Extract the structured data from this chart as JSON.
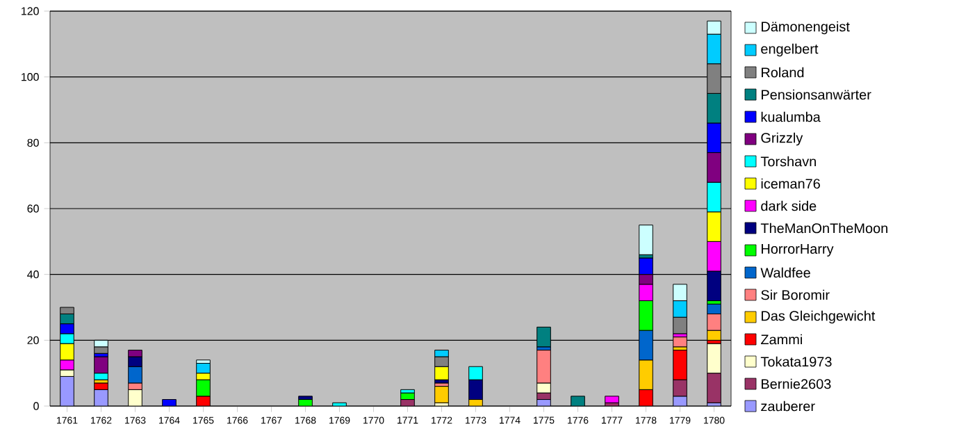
{
  "chart_data": {
    "type": "bar",
    "stacked": true,
    "legend": "right",
    "grid": "y",
    "categories": [
      "1761",
      "1762",
      "1763",
      "1764",
      "1765",
      "1766",
      "1767",
      "1768",
      "1769",
      "1770",
      "1771",
      "1772",
      "1773",
      "1774",
      "1775",
      "1776",
      "1777",
      "1778",
      "1779",
      "1780"
    ],
    "ylim": [
      0,
      120
    ],
    "yticks": [
      0,
      20,
      40,
      60,
      80,
      100,
      120
    ],
    "series": [
      {
        "name": "zauberer",
        "color": "#9999ff",
        "values": [
          9,
          5,
          0,
          0,
          0,
          0,
          0,
          0,
          0,
          0,
          0,
          0,
          0,
          0,
          2,
          0,
          0,
          0,
          3,
          1
        ]
      },
      {
        "name": "Bernie2603",
        "color": "#993366",
        "values": [
          0,
          0,
          0,
          0,
          0,
          0,
          0,
          0,
          0,
          0,
          2,
          0,
          0,
          0,
          2,
          0,
          1,
          0,
          5,
          9
        ]
      },
      {
        "name": "Tokata1973",
        "color": "#ffffcc",
        "values": [
          2,
          0,
          5,
          0,
          0,
          0,
          0,
          0,
          0,
          0,
          0,
          1,
          0,
          0,
          3,
          0,
          0,
          0,
          0,
          9
        ]
      },
      {
        "name": "Zammi",
        "color": "#ff0000",
        "values": [
          0,
          2,
          0,
          0,
          3,
          0,
          0,
          0,
          0,
          0,
          0,
          0,
          0,
          0,
          0,
          0,
          0,
          5,
          9,
          1
        ]
      },
      {
        "name": "Das Gleichgewicht",
        "color": "#ffcc00",
        "values": [
          0,
          1,
          0,
          0,
          0,
          0,
          0,
          0,
          0,
          0,
          0,
          5,
          2,
          0,
          0,
          0,
          0,
          9,
          1,
          3
        ]
      },
      {
        "name": "Sir Boromir",
        "color": "#ff8080",
        "values": [
          0,
          0,
          2,
          0,
          0,
          0,
          0,
          0,
          0,
          0,
          0,
          1,
          0,
          0,
          10,
          0,
          0,
          0,
          3,
          5
        ]
      },
      {
        "name": "Waldfee",
        "color": "#0066cc",
        "values": [
          0,
          0,
          5,
          0,
          0,
          0,
          0,
          0,
          0,
          0,
          0,
          0,
          0,
          0,
          1,
          0,
          0,
          9,
          0,
          3
        ]
      },
      {
        "name": "HorrorHarry",
        "color": "#00ff00",
        "values": [
          0,
          0,
          0,
          0,
          5,
          0,
          0,
          2,
          0,
          0,
          2,
          0,
          0,
          0,
          0,
          0,
          0,
          9,
          0,
          1
        ]
      },
      {
        "name": "TheManOnTheMoon",
        "color": "#000080",
        "values": [
          0,
          0,
          3,
          0,
          0,
          0,
          0,
          1,
          0,
          0,
          0,
          1,
          6,
          0,
          0,
          0,
          0,
          0,
          0,
          9
        ]
      },
      {
        "name": "dark side",
        "color": "#ff00ff",
        "values": [
          3,
          0,
          0,
          0,
          0,
          0,
          0,
          0,
          0,
          0,
          0,
          0,
          0,
          0,
          0,
          0,
          2,
          5,
          1,
          9
        ]
      },
      {
        "name": "iceman76",
        "color": "#ffff00",
        "values": [
          5,
          0,
          0,
          0,
          2,
          0,
          0,
          0,
          0,
          0,
          0,
          4,
          0,
          0,
          0,
          0,
          0,
          0,
          0,
          9
        ]
      },
      {
        "name": "Torshavn",
        "color": "#00ffff",
        "values": [
          3,
          2,
          0,
          0,
          0,
          0,
          0,
          0,
          1,
          0,
          1,
          0,
          4,
          0,
          0,
          0,
          0,
          0,
          0,
          9
        ]
      },
      {
        "name": "Grizzly",
        "color": "#800080",
        "values": [
          0,
          5,
          2,
          0,
          0,
          0,
          0,
          0,
          0,
          0,
          0,
          0,
          0,
          0,
          0,
          0,
          0,
          3,
          0,
          9
        ]
      },
      {
        "name": "kualumba",
        "color": "#0000ff",
        "values": [
          3,
          1,
          0,
          2,
          0,
          0,
          0,
          0,
          0,
          0,
          0,
          0,
          0,
          0,
          0,
          0,
          0,
          5,
          0,
          9
        ]
      },
      {
        "name": "Pensionsanwärter",
        "color": "#008080",
        "values": [
          3,
          0,
          0,
          0,
          0,
          0,
          0,
          0,
          0,
          0,
          0,
          0,
          0,
          0,
          6,
          3,
          0,
          1,
          0,
          9
        ]
      },
      {
        "name": "Roland",
        "color": "#808080",
        "values": [
          2,
          2,
          0,
          0,
          0,
          0,
          0,
          0,
          0,
          0,
          0,
          3,
          0,
          0,
          0,
          0,
          0,
          0,
          5,
          9
        ]
      },
      {
        "name": "engelbert",
        "color": "#00ccff",
        "values": [
          0,
          0,
          0,
          0,
          3,
          0,
          0,
          0,
          0,
          0,
          0,
          2,
          0,
          0,
          0,
          0,
          0,
          0,
          5,
          9
        ]
      },
      {
        "name": "Dämonengeist",
        "color": "#ccffff",
        "values": [
          0,
          2,
          0,
          0,
          1,
          0,
          0,
          0,
          0,
          0,
          0,
          0,
          0,
          0,
          0,
          0,
          0,
          9,
          5,
          4
        ]
      }
    ]
  }
}
